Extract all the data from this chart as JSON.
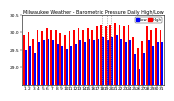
{
  "title": "Milwaukee Weather - Barometric Pressure Daily High/Low",
  "background_color": "#ffffff",
  "high_color": "#ff0000",
  "low_color": "#0000ff",
  "legend_high": "High",
  "legend_low": "Low",
  "dates": [
    "1",
    "2",
    "3",
    "4",
    "5",
    "6",
    "7",
    "8",
    "9",
    "10",
    "11",
    "12",
    "13",
    "14",
    "15",
    "16",
    "17",
    "18",
    "19",
    "20",
    "21",
    "22",
    "23",
    "24",
    "25",
    "26",
    "27",
    "28",
    "29",
    "30",
    "31"
  ],
  "highs": [
    29.92,
    30.02,
    29.82,
    30.08,
    30.05,
    30.13,
    30.08,
    30.08,
    29.98,
    29.92,
    30.04,
    30.08,
    30.13,
    30.08,
    30.13,
    30.08,
    30.18,
    30.22,
    30.18,
    30.22,
    30.28,
    30.22,
    30.18,
    30.22,
    29.88,
    29.55,
    29.75,
    30.18,
    30.08,
    30.12,
    30.08
  ],
  "lows": [
    29.48,
    29.62,
    29.42,
    29.72,
    29.78,
    29.82,
    29.78,
    29.68,
    29.62,
    29.52,
    29.62,
    29.68,
    29.78,
    29.72,
    29.82,
    29.78,
    29.82,
    29.88,
    29.78,
    29.88,
    29.92,
    29.82,
    29.72,
    29.78,
    29.38,
    28.95,
    29.42,
    29.78,
    29.62,
    29.72,
    29.72
  ],
  "dotted_lines": [
    17,
    18,
    19
  ],
  "ylim_low": 28.5,
  "ylim_high": 30.5,
  "yticks": [
    29.0,
    29.5,
    30.0,
    30.5
  ],
  "bar_width": 0.4,
  "tick_fontsize": 3.2,
  "title_fontsize": 3.5,
  "ytick_fontsize": 3.2
}
